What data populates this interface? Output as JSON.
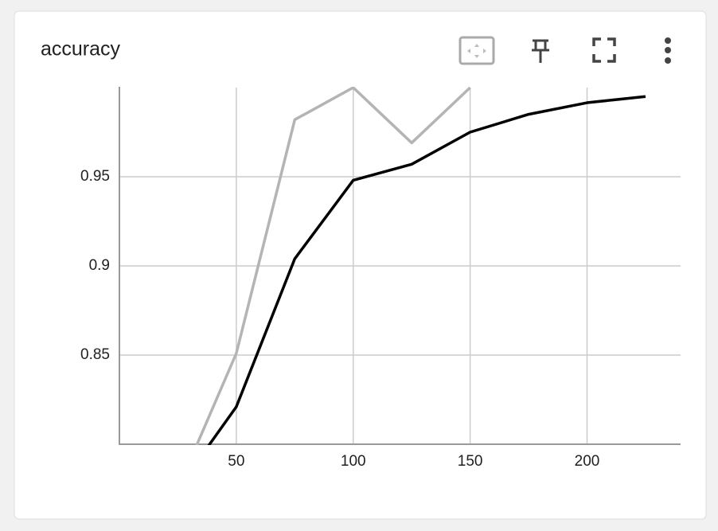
{
  "chart_data": {
    "type": "line",
    "title": "accuracy",
    "series": [
      {
        "color": "#b4b4b4",
        "x": [
          25,
          50,
          75,
          100,
          125,
          150
        ],
        "values": [
          0.775,
          0.851,
          0.982,
          1.0,
          0.969,
          1.0
        ]
      },
      {
        "color": "#000000",
        "x": [
          25,
          50,
          75,
          100,
          125,
          150,
          175,
          200,
          225
        ],
        "values": [
          0.775,
          0.821,
          0.904,
          0.948,
          0.957,
          0.975,
          0.985,
          0.9915,
          0.995
        ]
      }
    ],
    "xlim": [
      0,
      240
    ],
    "ylim": [
      0.8,
      1.0
    ],
    "xticks": [
      50,
      100,
      150,
      200
    ],
    "yticks": [
      0.85,
      0.9,
      0.95
    ],
    "grid": true
  }
}
